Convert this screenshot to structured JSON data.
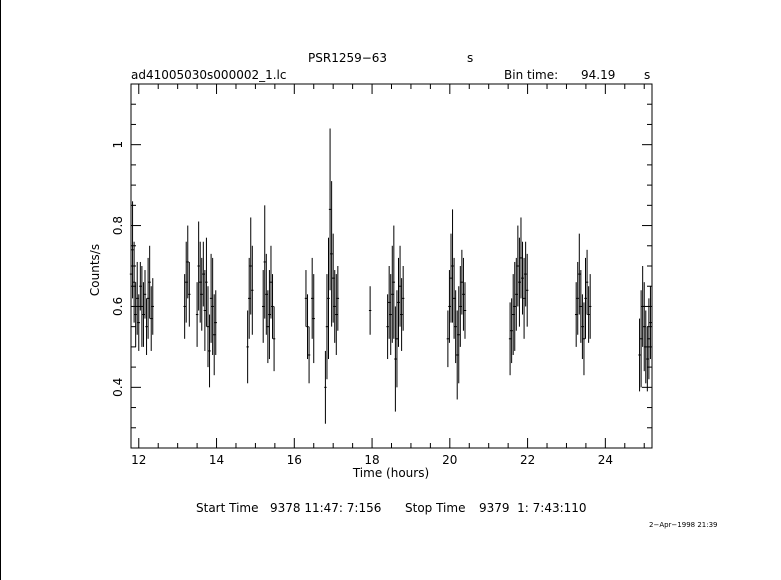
{
  "header": {
    "source": "PSR1259−63",
    "source_unit": "s",
    "filename": "ad41005030s000002_1.lc",
    "bin_time_label": "Bin time:",
    "bin_time_value": "94.19",
    "bin_time_unit": "s"
  },
  "footer": {
    "start_label": "Start Time",
    "start_value": "9378 11:47: 7:156",
    "stop_label": "Stop Time",
    "stop_value": "9379  1: 7:43:110",
    "plot_date": "2−Apr−1998 21:39"
  },
  "chart_data": {
    "type": "scatter",
    "title": "PSR1259−63",
    "xlabel": "Time (hours)",
    "ylabel": "Counts/s",
    "xlim": [
      11.8,
      25.2
    ],
    "ylim": [
      0.25,
      1.15
    ],
    "xticks": [
      12,
      14,
      16,
      18,
      20,
      22,
      24
    ],
    "yticks": [
      0.4,
      0.6,
      0.8,
      1
    ],
    "ytick_labels": [
      "0.4",
      "0.6",
      "0.8",
      "1"
    ],
    "error_bars": "vertical",
    "grid": false,
    "series": [
      {
        "x": [
          11.8,
          11.84,
          11.88,
          11.92,
          11.96,
          12.0,
          12.04,
          12.08,
          12.12,
          12.16,
          12.2,
          12.24,
          12.28,
          12.32,
          12.36,
          13.18,
          13.22,
          13.26,
          13.3,
          13.5,
          13.54,
          13.58,
          13.62,
          13.66,
          13.7,
          13.74,
          13.78,
          13.82,
          13.86,
          13.9,
          13.94,
          13.98,
          14.8,
          14.84,
          14.88,
          14.92,
          15.2,
          15.24,
          15.28,
          15.32,
          15.36,
          15.4,
          15.44,
          15.48,
          16.3,
          16.34,
          16.38,
          16.46,
          16.5,
          16.8,
          16.84,
          16.88,
          16.92,
          16.96,
          17.0,
          17.04,
          17.08,
          17.12,
          17.95,
          18.4,
          18.44,
          18.48,
          18.52,
          18.56,
          18.6,
          18.64,
          18.68,
          18.72,
          18.76,
          18.8,
          19.95,
          19.99,
          20.03,
          20.07,
          20.11,
          20.15,
          20.19,
          20.23,
          20.27,
          20.31,
          20.35,
          20.39,
          21.55,
          21.59,
          21.63,
          21.67,
          21.71,
          21.75,
          21.79,
          21.83,
          21.87,
          21.91,
          21.95,
          21.99,
          23.25,
          23.29,
          23.33,
          23.37,
          23.41,
          23.45,
          23.49,
          23.53,
          23.57,
          23.61,
          24.88,
          24.92,
          24.96,
          25.0,
          25.04,
          25.08,
          25.12,
          25.16
        ],
        "y": [
          0.68,
          0.74,
          0.66,
          0.58,
          0.62,
          0.56,
          0.65,
          0.6,
          0.58,
          0.63,
          0.55,
          0.62,
          0.66,
          0.57,
          0.6,
          0.6,
          0.66,
          0.71,
          0.63,
          0.58,
          0.7,
          0.66,
          0.63,
          0.68,
          0.59,
          0.66,
          0.55,
          0.49,
          0.62,
          0.6,
          0.53,
          0.56,
          0.5,
          0.62,
          0.7,
          0.64,
          0.6,
          0.71,
          0.63,
          0.55,
          0.58,
          0.66,
          0.6,
          0.52,
          0.62,
          0.55,
          0.48,
          0.62,
          0.57,
          0.4,
          0.55,
          0.62,
          0.84,
          0.73,
          0.67,
          0.6,
          0.58,
          0.62,
          0.59,
          0.55,
          0.61,
          0.58,
          0.63,
          0.66,
          0.47,
          0.52,
          0.61,
          0.65,
          0.58,
          0.62,
          0.52,
          0.6,
          0.67,
          0.7,
          0.62,
          0.55,
          0.48,
          0.53,
          0.6,
          0.66,
          0.63,
          0.59,
          0.52,
          0.54,
          0.58,
          0.6,
          0.63,
          0.7,
          0.66,
          0.72,
          0.67,
          0.62,
          0.68,
          0.64,
          0.58,
          0.62,
          0.68,
          0.6,
          0.55,
          0.52,
          0.62,
          0.66,
          0.58,
          0.6,
          0.48,
          0.52,
          0.6,
          0.55,
          0.5,
          0.47,
          0.52,
          0.56
        ],
        "yerr": [
          0.07,
          0.12,
          0.1,
          0.08,
          0.09,
          0.07,
          0.06,
          0.1,
          0.08,
          0.06,
          0.07,
          0.1,
          0.09,
          0.08,
          0.07,
          0.08,
          0.1,
          0.09,
          0.08,
          0.08,
          0.11,
          0.1,
          0.09,
          0.08,
          0.1,
          0.11,
          0.1,
          0.09,
          0.11,
          0.12,
          0.1,
          0.08,
          0.09,
          0.1,
          0.12,
          0.11,
          0.09,
          0.14,
          0.1,
          0.09,
          0.11,
          0.09,
          0.08,
          0.08,
          0.07,
          0.08,
          0.07,
          0.1,
          0.11,
          0.09,
          0.13,
          0.15,
          0.2,
          0.18,
          0.11,
          0.09,
          0.1,
          0.08,
          0.06,
          0.08,
          0.09,
          0.1,
          0.12,
          0.14,
          0.13,
          0.12,
          0.11,
          0.1,
          0.09,
          0.08,
          0.07,
          0.09,
          0.11,
          0.14,
          0.1,
          0.09,
          0.11,
          0.12,
          0.1,
          0.08,
          0.09,
          0.07,
          0.09,
          0.08,
          0.1,
          0.11,
          0.09,
          0.1,
          0.11,
          0.1,
          0.09,
          0.1,
          0.08,
          0.09,
          0.08,
          0.09,
          0.1,
          0.09,
          0.08,
          0.09,
          0.1,
          0.08,
          0.07,
          0.08,
          0.09,
          0.12,
          0.1,
          0.11,
          0.09,
          0.08,
          0.1,
          0.09
        ]
      }
    ]
  }
}
